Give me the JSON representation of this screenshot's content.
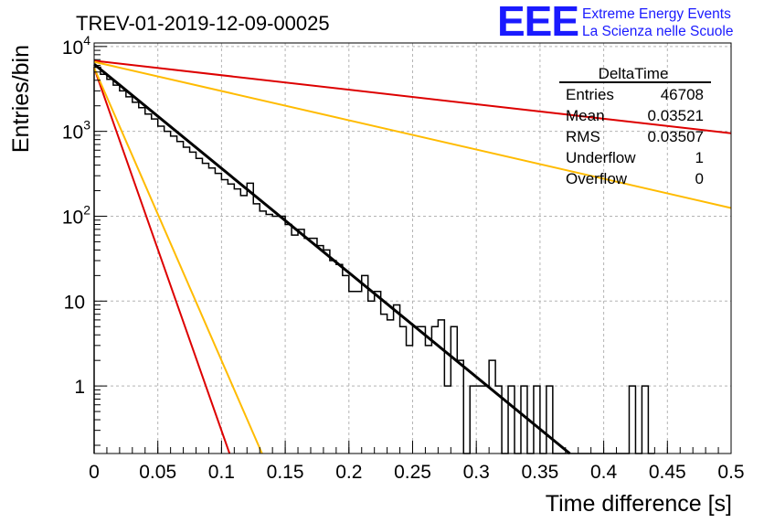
{
  "header": {
    "title": "TREV-01-2019-12-09-00025",
    "logo_text": "EEE",
    "logo_line1": "Extreme Energy Events",
    "logo_line2": "La Scienza nelle Scuole"
  },
  "stats": {
    "title": "DeltaTime",
    "rows": [
      {
        "label": "Entries",
        "value": "46708"
      },
      {
        "label": "Mean",
        "value": "0.03521"
      },
      {
        "label": "RMS",
        "value": "0.03507"
      },
      {
        "label": "Underflow",
        "value": "1"
      },
      {
        "label": "Overflow",
        "value": "0"
      }
    ]
  },
  "chart_data": {
    "type": "histogram",
    "title": "TREV-01-2019-12-09-00025",
    "xlabel": "Time difference [s]",
    "ylabel": "Entries/bin",
    "xlim": [
      0,
      0.5
    ],
    "ylim": [
      0.16,
      11000
    ],
    "yscale": "log",
    "grid": true,
    "legend": "top-right",
    "x_ticks": [
      {
        "v": 0,
        "label": "0"
      },
      {
        "v": 0.05,
        "label": "0.05"
      },
      {
        "v": 0.1,
        "label": "0.1"
      },
      {
        "v": 0.15,
        "label": "0.15"
      },
      {
        "v": 0.2,
        "label": "0.2"
      },
      {
        "v": 0.25,
        "label": "0.25"
      },
      {
        "v": 0.3,
        "label": "0.3"
      },
      {
        "v": 0.35,
        "label": "0.35"
      },
      {
        "v": 0.4,
        "label": "0.4"
      },
      {
        "v": 0.45,
        "label": "0.45"
      },
      {
        "v": 0.5,
        "label": "0.5"
      }
    ],
    "y_ticks": [
      {
        "v": 1,
        "label": "1",
        "sup": ""
      },
      {
        "v": 10,
        "label": "10",
        "sup": ""
      },
      {
        "v": 100,
        "label": "10",
        "sup": "2"
      },
      {
        "v": 1000,
        "label": "10",
        "sup": "3"
      },
      {
        "v": 10000,
        "label": "10",
        "sup": "4"
      }
    ],
    "histogram": {
      "bin_width": 0.005,
      "color": "#000000",
      "bins": [
        {
          "x": 0.0,
          "y": 5700
        },
        {
          "x": 0.005,
          "y": 4700
        },
        {
          "x": 0.01,
          "y": 4100
        },
        {
          "x": 0.015,
          "y": 3500
        },
        {
          "x": 0.02,
          "y": 3000
        },
        {
          "x": 0.025,
          "y": 2550
        },
        {
          "x": 0.03,
          "y": 2200
        },
        {
          "x": 0.035,
          "y": 1900
        },
        {
          "x": 0.04,
          "y": 1600
        },
        {
          "x": 0.045,
          "y": 1400
        },
        {
          "x": 0.05,
          "y": 1150
        },
        {
          "x": 0.055,
          "y": 1000
        },
        {
          "x": 0.06,
          "y": 880
        },
        {
          "x": 0.065,
          "y": 760
        },
        {
          "x": 0.07,
          "y": 650
        },
        {
          "x": 0.075,
          "y": 570
        },
        {
          "x": 0.08,
          "y": 480
        },
        {
          "x": 0.085,
          "y": 420
        },
        {
          "x": 0.09,
          "y": 370
        },
        {
          "x": 0.095,
          "y": 320
        },
        {
          "x": 0.1,
          "y": 270
        },
        {
          "x": 0.105,
          "y": 240
        },
        {
          "x": 0.11,
          "y": 210
        },
        {
          "x": 0.115,
          "y": 175
        },
        {
          "x": 0.12,
          "y": 245
        },
        {
          "x": 0.125,
          "y": 140
        },
        {
          "x": 0.13,
          "y": 115
        },
        {
          "x": 0.135,
          "y": 105
        },
        {
          "x": 0.14,
          "y": 100
        },
        {
          "x": 0.145,
          "y": 100
        },
        {
          "x": 0.15,
          "y": 80
        },
        {
          "x": 0.155,
          "y": 60
        },
        {
          "x": 0.16,
          "y": 70
        },
        {
          "x": 0.165,
          "y": 55
        },
        {
          "x": 0.17,
          "y": 55
        },
        {
          "x": 0.175,
          "y": 45
        },
        {
          "x": 0.18,
          "y": 40
        },
        {
          "x": 0.185,
          "y": 30
        },
        {
          "x": 0.19,
          "y": 27
        },
        {
          "x": 0.195,
          "y": 20
        },
        {
          "x": 0.2,
          "y": 13
        },
        {
          "x": 0.205,
          "y": 13
        },
        {
          "x": 0.21,
          "y": 20
        },
        {
          "x": 0.215,
          "y": 10
        },
        {
          "x": 0.22,
          "y": 13
        },
        {
          "x": 0.225,
          "y": 7
        },
        {
          "x": 0.23,
          "y": 6
        },
        {
          "x": 0.235,
          "y": 9
        },
        {
          "x": 0.24,
          "y": 5
        },
        {
          "x": 0.245,
          "y": 3
        },
        {
          "x": 0.25,
          "y": 5
        },
        {
          "x": 0.255,
          "y": 5
        },
        {
          "x": 0.26,
          "y": 3
        },
        {
          "x": 0.265,
          "y": 5
        },
        {
          "x": 0.27,
          "y": 6
        },
        {
          "x": 0.275,
          "y": 1
        },
        {
          "x": 0.28,
          "y": 5
        },
        {
          "x": 0.285,
          "y": 2
        },
        {
          "x": 0.29,
          "y": 0
        },
        {
          "x": 0.295,
          "y": 1
        },
        {
          "x": 0.3,
          "y": 1
        },
        {
          "x": 0.305,
          "y": 1
        },
        {
          "x": 0.31,
          "y": 2
        },
        {
          "x": 0.315,
          "y": 1
        },
        {
          "x": 0.32,
          "y": 0
        },
        {
          "x": 0.325,
          "y": 1
        },
        {
          "x": 0.33,
          "y": 0
        },
        {
          "x": 0.335,
          "y": 1
        },
        {
          "x": 0.34,
          "y": 0
        },
        {
          "x": 0.345,
          "y": 1
        },
        {
          "x": 0.35,
          "y": 0
        },
        {
          "x": 0.355,
          "y": 1
        },
        {
          "x": 0.36,
          "y": 0
        },
        {
          "x": 0.365,
          "y": 0
        },
        {
          "x": 0.37,
          "y": 0
        },
        {
          "x": 0.375,
          "y": 0
        },
        {
          "x": 0.38,
          "y": 0
        },
        {
          "x": 0.385,
          "y": 0
        },
        {
          "x": 0.39,
          "y": 0
        },
        {
          "x": 0.395,
          "y": 0
        },
        {
          "x": 0.4,
          "y": 0
        },
        {
          "x": 0.405,
          "y": 0
        },
        {
          "x": 0.41,
          "y": 0
        },
        {
          "x": 0.415,
          "y": 0
        },
        {
          "x": 0.42,
          "y": 1
        },
        {
          "x": 0.425,
          "y": 0
        },
        {
          "x": 0.43,
          "y": 1
        },
        {
          "x": 0.435,
          "y": 0
        }
      ]
    },
    "series": [
      {
        "color": "#000000",
        "points": [
          [
            0.0,
            6200
          ],
          [
            0.3734,
            0.16
          ]
        ]
      },
      {
        "color": "#dd0000",
        "points": [
          [
            0.0,
            6800
          ],
          [
            0.5,
            950
          ]
        ]
      },
      {
        "color": "#ffbb00",
        "points": [
          [
            0.0,
            6600
          ],
          [
            0.5,
            125
          ]
        ]
      },
      {
        "color": "#dd0000",
        "points": [
          [
            0.0,
            5600
          ],
          [
            0.1063,
            0.16
          ]
        ]
      },
      {
        "color": "#ffbb00",
        "points": [
          [
            0.0,
            5600
          ],
          [
            0.1318,
            0.16
          ]
        ]
      }
    ]
  }
}
